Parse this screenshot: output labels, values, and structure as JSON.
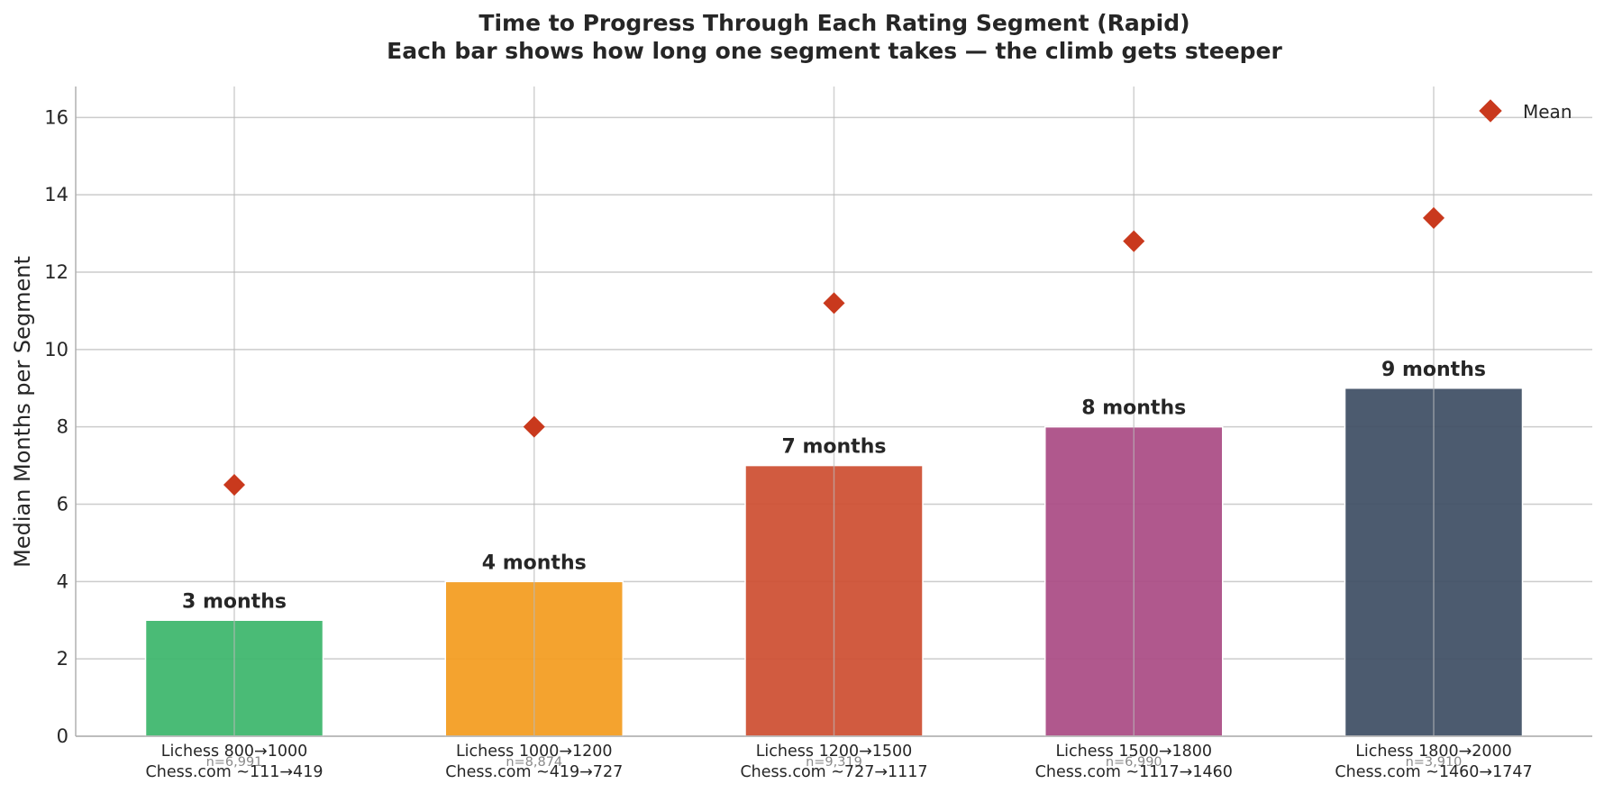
{
  "chart_data": {
    "type": "bar",
    "title": "Time to Progress Through Each Rating Segment (Rapid)",
    "subtitle": "Each bar shows how long one segment takes — the climb gets steeper",
    "ylabel": "Median Months per Segment",
    "xlabel": "",
    "ylim": [
      0,
      16.8
    ],
    "yticks": [
      0,
      2,
      4,
      6,
      8,
      10,
      12,
      14,
      16
    ],
    "grid": true,
    "legend": {
      "position": "top-right",
      "entries": [
        "Mean"
      ]
    },
    "categories": [
      {
        "line1": "Lichess 800→1000",
        "line2": "Chess.com ~111→419",
        "n": "n=6,991"
      },
      {
        "line1": "Lichess 1000→1200",
        "line2": "Chess.com ~419→727",
        "n": "n=8,874"
      },
      {
        "line1": "Lichess 1200→1500",
        "line2": "Chess.com ~727→1117",
        "n": "n=9,319"
      },
      {
        "line1": "Lichess 1500→1800",
        "line2": "Chess.com ~1117→1460",
        "n": "n=6,990"
      },
      {
        "line1": "Lichess 1800→2000",
        "line2": "Chess.com ~1460→1747",
        "n": "n=3,910"
      }
    ],
    "series": [
      {
        "name": "",
        "kind": "bar",
        "values": [
          3,
          4,
          7,
          8,
          9
        ],
        "labels": [
          "3 months",
          "4 months",
          "7 months",
          "8 months",
          "9 months"
        ]
      },
      {
        "name": "Mean",
        "kind": "marker",
        "values": [
          6.5,
          8.0,
          11.2,
          12.8,
          13.4
        ]
      }
    ],
    "colors": {
      "bars": [
        "#3cb66c",
        "#f39c1f",
        "#cd4f32",
        "#aa4b84",
        "#3e4f64"
      ],
      "mean_marker": "#c9391d",
      "grid": "#cccccc",
      "axis": "#b0b0b0"
    }
  }
}
